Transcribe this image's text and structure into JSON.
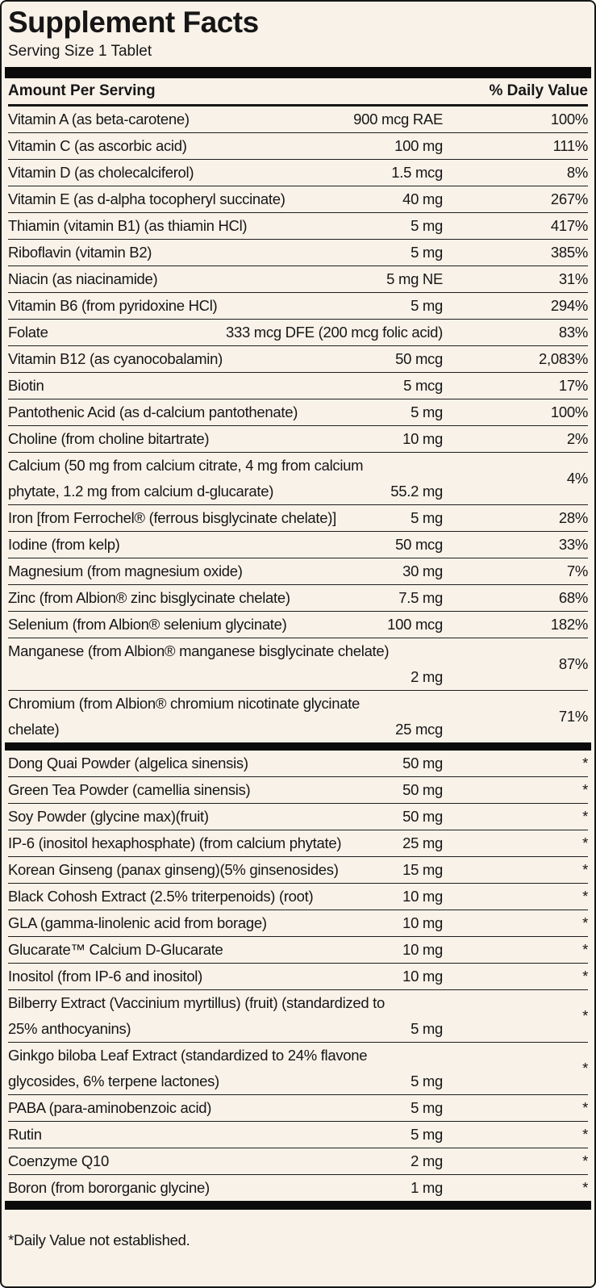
{
  "title": "Supplement Facts",
  "serving_size": "Serving Size 1 Tablet",
  "header": {
    "amount_label": "Amount Per Serving",
    "daily_value_label": "% Daily Value"
  },
  "footnote": "*Daily Value not established.",
  "colors": {
    "background": "#f9f2e9",
    "text": "#161616",
    "divider_bar": "#0b0b0b",
    "row_rule": "#1d1d1d"
  },
  "sections": [
    {
      "rows": [
        {
          "name": "Vitamin A (as beta-carotene)",
          "amount": "900 mcg RAE",
          "dv": "100%"
        },
        {
          "name": "Vitamin C (as ascorbic acid)",
          "amount": "100 mg",
          "dv": "111%"
        },
        {
          "name": "Vitamin D (as cholecalciferol)",
          "amount": "1.5 mcg",
          "dv": "8%"
        },
        {
          "name": "Vitamin E (as d-alpha tocopheryl succinate)",
          "amount": "40 mg",
          "dv": "267%"
        },
        {
          "name": "Thiamin (vitamin B1) (as thiamin HCl)",
          "amount": "5 mg",
          "dv": "417%"
        },
        {
          "name": "Riboflavin (vitamin B2)",
          "amount": "5 mg",
          "dv": "385%"
        },
        {
          "name": "Niacin (as niacinamide)",
          "amount": "5 mg NE",
          "dv": "31%"
        },
        {
          "name": "Vitamin B6 (from pyridoxine HCl)",
          "amount": "5 mg",
          "dv": "294%"
        },
        {
          "name": "Folate",
          "amount": "333 mcg DFE (200 mcg folic acid)",
          "dv": "83%"
        },
        {
          "name": "Vitamin B12 (as cyanocobalamin)",
          "amount": "50 mcg",
          "dv": "2,083%"
        },
        {
          "name": "Biotin",
          "amount": "5 mcg",
          "dv": "17%"
        },
        {
          "name": "Pantothenic Acid (as d-calcium pantothenate)",
          "amount": "5 mg",
          "dv": "100%"
        },
        {
          "name": "Choline (from choline bitartrate)",
          "amount": "10 mg",
          "dv": "2%"
        },
        {
          "name": "Calcium (50 mg from calcium citrate, 4 mg from calcium",
          "name2": "phytate, 1.2 mg from calcium d-glucarate)",
          "amount": "55.2 mg",
          "dv": "4%"
        },
        {
          "name": "Iron [from Ferrochel® (ferrous bisglycinate chelate)]",
          "amount": "5 mg",
          "dv": "28%"
        },
        {
          "name": "Iodine (from kelp)",
          "amount": "50 mcg",
          "dv": "33%"
        },
        {
          "name": "Magnesium (from magnesium oxide)",
          "amount": "30 mg",
          "dv": "7%"
        },
        {
          "name": "Zinc (from Albion® zinc bisglycinate chelate)",
          "amount": "7.5 mg",
          "dv": "68%"
        },
        {
          "name": "Selenium (from Albion® selenium glycinate)",
          "amount": "100 mcg",
          "dv": "182%"
        },
        {
          "name": "Manganese (from Albion® manganese bisglycinate chelate)",
          "name2": "",
          "amount": "2 mg",
          "dv": "87%"
        },
        {
          "name": "Chromium (from Albion® chromium nicotinate glycinate",
          "name2": "chelate)",
          "amount": "25 mcg",
          "dv": "71%"
        }
      ]
    },
    {
      "rows": [
        {
          "name": "Dong Quai Powder (algelica sinensis)",
          "amount": "50 mg",
          "dv": "*"
        },
        {
          "name": "Green Tea Powder (camellia sinensis)",
          "amount": "50 mg",
          "dv": "*"
        },
        {
          "name": "Soy Powder (glycine max)(fruit)",
          "amount": "50 mg",
          "dv": "*"
        },
        {
          "name": "IP-6 (inositol hexaphosphate) (from calcium phytate)",
          "amount": "25 mg",
          "dv": "*"
        },
        {
          "name": "Korean Ginseng (panax ginseng)(5% ginsenosides)",
          "amount": "15 mg",
          "dv": "*"
        },
        {
          "name": "Black Cohosh Extract (2.5% triterpenoids) (root)",
          "amount": "10 mg",
          "dv": "*"
        },
        {
          "name": "GLA (gamma-linolenic acid from borage)",
          "amount": "10 mg",
          "dv": "*"
        },
        {
          "name": "Glucarate™ Calcium D-Glucarate",
          "amount": "10 mg",
          "dv": "*"
        },
        {
          "name": "Inositol (from IP-6 and inositol)",
          "amount": "10 mg",
          "dv": "*"
        },
        {
          "name": "Bilberry Extract (Vaccinium myrtillus) (fruit) (standardized to",
          "name2": "25% anthocyanins)",
          "amount": "5 mg",
          "dv": "*"
        },
        {
          "name": "Ginkgo biloba Leaf Extract (standardized to 24% flavone",
          "name2": "glycosides, 6% terpene lactones)",
          "amount": "5 mg",
          "dv": "*"
        },
        {
          "name": "PABA (para-aminobenzoic acid)",
          "amount": "5 mg",
          "dv": "*"
        },
        {
          "name": "Rutin",
          "amount": "5 mg",
          "dv": "*"
        },
        {
          "name": "Coenzyme Q10",
          "amount": "2 mg",
          "dv": "*"
        },
        {
          "name": "Boron (from bororganic glycine)",
          "amount": "1 mg",
          "dv": "*"
        }
      ]
    }
  ]
}
